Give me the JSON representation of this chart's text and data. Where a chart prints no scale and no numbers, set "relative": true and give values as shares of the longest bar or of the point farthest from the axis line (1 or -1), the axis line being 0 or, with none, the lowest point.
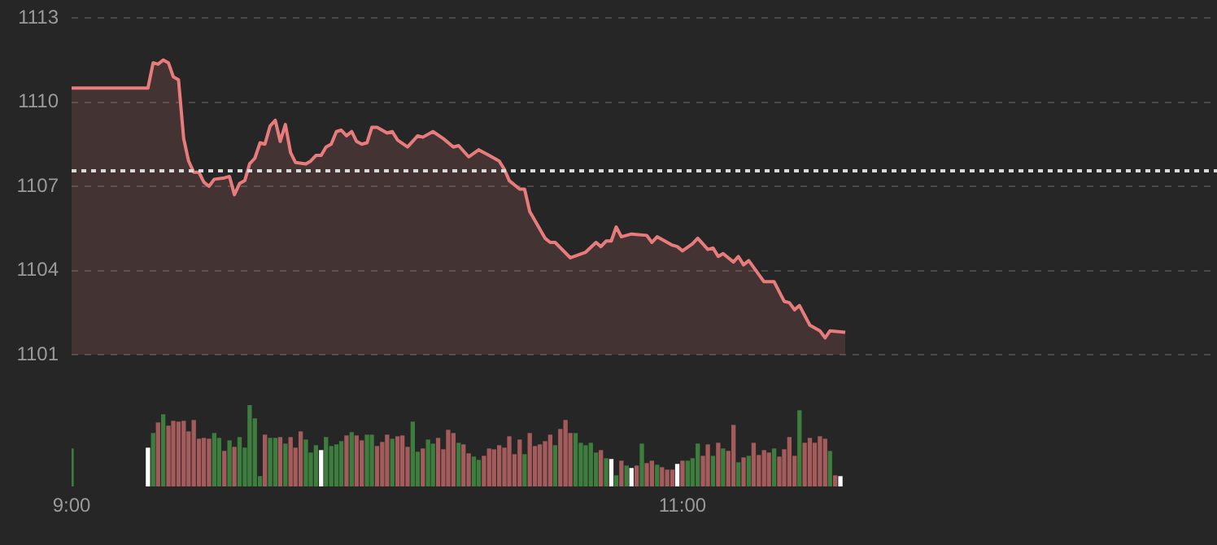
{
  "chart_data": [
    {
      "type": "area",
      "xlim": [
        9,
        12.75
      ],
      "ylim": [
        1101,
        1113
      ],
      "yticks": [
        1101,
        1104,
        1107,
        1110,
        1113
      ],
      "grid": "y",
      "tick_labels": "y",
      "marker": "none",
      "ref_lines": [
        {
          "axis": "y",
          "value": 1107.55,
          "color": "#d9d9d9",
          "line_style": "dotted"
        }
      ],
      "series": [
        {
          "color": "#e87c7c",
          "x": [
            9,
            9.25,
            9.267,
            9.283,
            9.3,
            9.317,
            9.333,
            9.35,
            9.367,
            9.383,
            9.4,
            9.417,
            9.433,
            9.45,
            9.467,
            9.5,
            9.517,
            9.533,
            9.55,
            9.567,
            9.583,
            9.6,
            9.617,
            9.633,
            9.65,
            9.667,
            9.683,
            9.7,
            9.717,
            9.733,
            9.767,
            9.783,
            9.8,
            9.817,
            9.833,
            9.85,
            9.867,
            9.883,
            9.9,
            9.917,
            9.933,
            9.95,
            9.967,
            9.983,
            10,
            10.033,
            10.05,
            10.067,
            10.1,
            10.133,
            10.15,
            10.183,
            10.217,
            10.25,
            10.267,
            10.3,
            10.333,
            10.367,
            10.4,
            10.417,
            10.433,
            10.467,
            10.483,
            10.5,
            10.55,
            10.567,
            10.583,
            10.633,
            10.683,
            10.717,
            10.733,
            10.75,
            10.767,
            10.783,
            10.8,
            10.833,
            10.883,
            10.9,
            10.917,
            10.967,
            10.983,
            11,
            11.033,
            11.05,
            11.083,
            11.1,
            11.117,
            11.133,
            11.167,
            11.183,
            11.2,
            11.217,
            11.267,
            11.3,
            11.333,
            11.35,
            11.367,
            11.383,
            11.417,
            11.45,
            11.467,
            11.483,
            11.533
          ],
          "values": [
            1110.5,
            1110.5,
            1111.4,
            1111.35,
            1111.5,
            1111.4,
            1110.9,
            1110.8,
            1108.7,
            1107.9,
            1107.5,
            1107.5,
            1107.15,
            1107.0,
            1107.25,
            1107.3,
            1107.35,
            1106.7,
            1107.1,
            1107.2,
            1107.8,
            1108.0,
            1108.55,
            1108.5,
            1109.15,
            1109.35,
            1108.6,
            1109.2,
            1108.2,
            1107.85,
            1107.8,
            1107.9,
            1108.1,
            1108.1,
            1108.4,
            1108.5,
            1108.95,
            1109.0,
            1108.8,
            1108.95,
            1108.6,
            1108.5,
            1108.55,
            1109.1,
            1109.1,
            1108.9,
            1108.95,
            1108.65,
            1108.4,
            1108.8,
            1108.75,
            1108.95,
            1108.7,
            1108.4,
            1108.45,
            1108.05,
            1108.3,
            1108.1,
            1107.9,
            1107.6,
            1107.2,
            1106.9,
            1106.9,
            1106.1,
            1105.15,
            1105.0,
            1105.0,
            1104.45,
            1104.65,
            1105.0,
            1104.85,
            1105.05,
            1105.05,
            1105.55,
            1105.2,
            1105.3,
            1105.25,
            1105.0,
            1105.2,
            1104.9,
            1104.85,
            1104.7,
            1104.95,
            1105.15,
            1104.75,
            1104.8,
            1104.5,
            1104.6,
            1104.3,
            1104.5,
            1104.2,
            1104.35,
            1103.6,
            1103.6,
            1102.9,
            1102.85,
            1102.6,
            1102.75,
            1102.05,
            1101.85,
            1101.6,
            1101.85,
            1101.8
          ]
        }
      ]
    },
    {
      "type": "bar",
      "relative": true,
      "xlim": [
        9,
        12.75
      ],
      "xticks": [
        {
          "value": 9,
          "label": "9:00"
        },
        {
          "value": 11,
          "label": "11:00"
        }
      ],
      "x": [
        9,
        9.25,
        9.267,
        9.283,
        9.3,
        9.317,
        9.333,
        9.35,
        9.367,
        9.383,
        9.4,
        9.417,
        9.433,
        9.45,
        9.467,
        9.483,
        9.5,
        9.517,
        9.533,
        9.55,
        9.567,
        9.583,
        9.6,
        9.617,
        9.633,
        9.65,
        9.667,
        9.683,
        9.7,
        9.717,
        9.733,
        9.75,
        9.767,
        9.783,
        9.8,
        9.817,
        9.833,
        9.85,
        9.867,
        9.883,
        9.9,
        9.917,
        9.933,
        9.95,
        9.967,
        9.983,
        10,
        10.017,
        10.033,
        10.05,
        10.067,
        10.083,
        10.1,
        10.117,
        10.133,
        10.15,
        10.167,
        10.183,
        10.2,
        10.217,
        10.233,
        10.25,
        10.267,
        10.283,
        10.3,
        10.317,
        10.333,
        10.35,
        10.367,
        10.383,
        10.4,
        10.417,
        10.433,
        10.45,
        10.467,
        10.483,
        10.5,
        10.517,
        10.533,
        10.55,
        10.567,
        10.583,
        10.6,
        10.617,
        10.633,
        10.65,
        10.667,
        10.683,
        10.7,
        10.717,
        10.733,
        10.75,
        10.767,
        10.783,
        10.8,
        10.817,
        10.833,
        10.85,
        10.867,
        10.883,
        10.9,
        10.917,
        10.933,
        10.95,
        10.967,
        10.983,
        11,
        11.017,
        11.033,
        11.05,
        11.067,
        11.083,
        11.1,
        11.117,
        11.133,
        11.15,
        11.167,
        11.183,
        11.2,
        11.217,
        11.233,
        11.25,
        11.267,
        11.283,
        11.3,
        11.317,
        11.333,
        11.35,
        11.367,
        11.383,
        11.4,
        11.417,
        11.433,
        11.45,
        11.467,
        11.483,
        11.5,
        11.517
      ],
      "values": [
        0.46,
        0.47,
        0.65,
        0.78,
        0.88,
        0.74,
        0.8,
        0.79,
        0.8,
        0.67,
        0.81,
        0.58,
        0.59,
        0.58,
        0.65,
        0.59,
        0.43,
        0.56,
        0.48,
        0.6,
        0.47,
        1,
        0.83,
        0.12,
        0.63,
        0.59,
        0.59,
        0.6,
        0.52,
        0.6,
        0.47,
        0.67,
        0.57,
        0.41,
        0.5,
        0.44,
        0.6,
        0.49,
        0.51,
        0.55,
        0.62,
        0.66,
        0.62,
        0.56,
        0.63,
        0.63,
        0.49,
        0.54,
        0.63,
        0.58,
        0.61,
        0.62,
        0.48,
        0.79,
        0.42,
        0.46,
        0.57,
        0.52,
        0.59,
        0.45,
        0.69,
        0.65,
        0.53,
        0.51,
        0.4,
        0.36,
        0.32,
        0.37,
        0.46,
        0.45,
        0.5,
        0.47,
        0.61,
        0.39,
        0.57,
        0.39,
        0.65,
        0.49,
        0.51,
        0.55,
        0.63,
        0.5,
        0.7,
        0.81,
        0.65,
        0.65,
        0.53,
        0.5,
        0.53,
        0.41,
        0.44,
        0.34,
        0.33,
        0.13,
        0.31,
        0.25,
        0.22,
        0.25,
        0.52,
        0.28,
        0.31,
        0.26,
        0.23,
        0.2,
        0.2,
        0.27,
        0.31,
        0.31,
        0.34,
        0.52,
        0.37,
        0.51,
        0.37,
        0.53,
        0.46,
        0.43,
        0.75,
        0.29,
        0.35,
        0.37,
        0.53,
        0.38,
        0.44,
        0.41,
        0.46,
        0.36,
        0.45,
        0.6,
        0.37,
        0.93,
        0.53,
        0.59,
        0.53,
        0.61,
        0.58,
        0.43,
        0.13,
        0.12
      ],
      "colors": [
        "#3d7d3d",
        "#ffffff",
        "#3d7d3d",
        "#a35b5b",
        "#3d7d3d",
        "#a35b5b",
        "#a35b5b",
        "#a35b5b",
        "#a35b5b",
        "#a35b5b",
        "#a35b5b",
        "#a35b5b",
        "#a35b5b",
        "#a35b5b",
        "#3d7d3d",
        "#3d7d3d",
        "#a35b5b",
        "#3d7d3d",
        "#a35b5b",
        "#3d7d3d",
        "#3d7d3d",
        "#3d7d3d",
        "#3d7d3d",
        "#3d7d3d",
        "#a35b5b",
        "#3d7d3d",
        "#3d7d3d",
        "#a35b5b",
        "#3d7d3d",
        "#a35b5b",
        "#a35b5b",
        "#a35b5b",
        "#3d7d3d",
        "#3d7d3d",
        "#3d7d3d",
        "#ffffff",
        "#3d7d3d",
        "#3d7d3d",
        "#3d7d3d",
        "#3d7d3d",
        "#a35b5b",
        "#3d7d3d",
        "#a35b5b",
        "#a35b5b",
        "#3d7d3d",
        "#3d7d3d",
        "#a35b5b",
        "#a35b5b",
        "#a35b5b",
        "#3d7d3d",
        "#a35b5b",
        "#a35b5b",
        "#a35b5b",
        "#3d7d3d",
        "#3d7d3d",
        "#a35b5b",
        "#3d7d3d",
        "#3d7d3d",
        "#a35b5b",
        "#a35b5b",
        "#a35b5b",
        "#a35b5b",
        "#3d7d3d",
        "#a35b5b",
        "#a35b5b",
        "#3d7d3d",
        "#3d7d3d",
        "#a35b5b",
        "#a35b5b",
        "#a35b5b",
        "#a35b5b",
        "#a35b5b",
        "#a35b5b",
        "#a35b5b",
        "#a35b5b",
        "#3d7d3d",
        "#a35b5b",
        "#a35b5b",
        "#a35b5b",
        "#a35b5b",
        "#a35b5b",
        "#3d7d3d",
        "#a35b5b",
        "#a35b5b",
        "#a35b5b",
        "#3d7d3d",
        "#3d7d3d",
        "#3d7d3d",
        "#3d7d3d",
        "#3d7d3d",
        "#a35b5b",
        "#3d7d3d",
        "#ffffff",
        "#3d7d3d",
        "#a35b5b",
        "#3d7d3d",
        "#ffffff",
        "#a35b5b",
        "#3d7d3d",
        "#a35b5b",
        "#a35b5b",
        "#3d7d3d",
        "#a35b5b",
        "#a35b5b",
        "#a35b5b",
        "#ffffff",
        "#a35b5b",
        "#3d7d3d",
        "#3d7d3d",
        "#3d7d3d",
        "#a35b5b",
        "#a35b5b",
        "#3d7d3d",
        "#a35b5b",
        "#3d7d3d",
        "#a35b5b",
        "#a35b5b",
        "#3d7d3d",
        "#a35b5b",
        "#3d7d3d",
        "#a35b5b",
        "#a35b5b",
        "#a35b5b",
        "#a35b5b",
        "#3d7d3d",
        "#a35b5b",
        "#a35b5b",
        "#a35b5b",
        "#a35b5b",
        "#3d7d3d",
        "#a35b5b",
        "#a35b5b",
        "#a35b5b",
        "#a35b5b",
        "#a35b5b",
        "#3d7d3d",
        "#a35b5b",
        "#ffffff"
      ]
    }
  ]
}
